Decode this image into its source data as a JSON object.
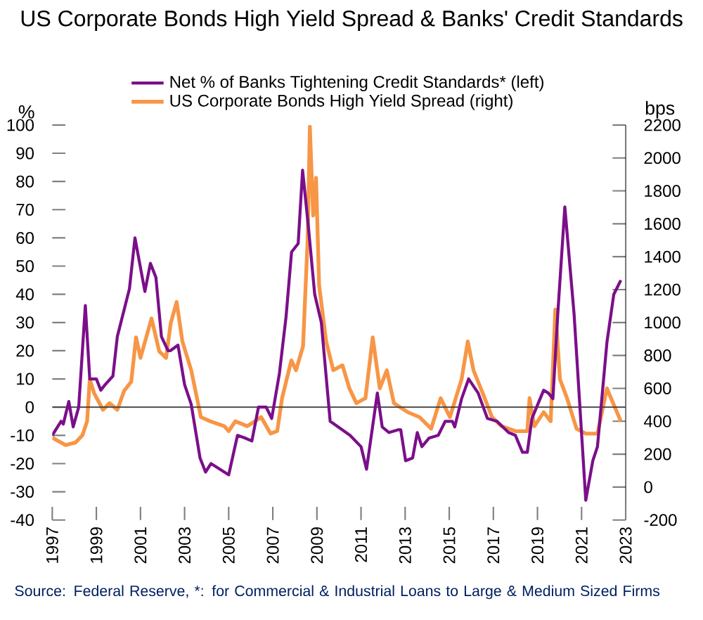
{
  "chart_data": {
    "type": "line",
    "title": "US Corporate Bonds High Yield Spread & Banks' Credit Standards",
    "ylabel": "%",
    "y2label": "bps",
    "xlim": [
      1997,
      2023
    ],
    "xticks": [
      1997,
      1999,
      2001,
      2003,
      2005,
      2007,
      2009,
      2011,
      2013,
      2015,
      2017,
      2019,
      2021,
      2023
    ],
    "ylim": [
      -40,
      100
    ],
    "yticks": [
      -40,
      -30,
      -20,
      -10,
      0,
      10,
      20,
      30,
      40,
      50,
      60,
      70,
      80,
      90,
      100
    ],
    "y2lim": [
      -200,
      2200
    ],
    "y2ticks": [
      -200,
      0,
      200,
      400,
      600,
      800,
      1000,
      1200,
      1400,
      1600,
      1800,
      2000,
      2200
    ],
    "legend": "top",
    "grid": false,
    "ref_lines": [
      {
        "axis": "y",
        "value": 0,
        "color": "#404040"
      }
    ],
    "series": [
      {
        "name": "Net % of Banks Tightening Credit Standards* (left)",
        "color": "#7b0f8a",
        "x": [
          1997.0,
          1997.4,
          1997.5,
          1997.75,
          1997.95,
          1998.2,
          1998.5,
          1998.7,
          1999.0,
          1999.2,
          1999.4,
          1999.75,
          1999.95,
          2000.5,
          2000.75,
          2001.2,
          2001.45,
          2001.7,
          2001.95,
          2002.25,
          2002.35,
          2002.7,
          2003.0,
          2003.3,
          2003.7,
          2003.95,
          2004.2,
          2004.8,
          2005.0,
          2005.4,
          2005.75,
          2006.05,
          2006.35,
          2006.7,
          2006.95,
          2007.3,
          2007.6,
          2007.85,
          2008.15,
          2008.35,
          2008.6,
          2008.9,
          2009.2,
          2009.6,
          2010.5,
          2011.0,
          2011.25,
          2011.74,
          2011.96,
          2012.27,
          2012.7,
          2012.8,
          2013.02,
          2013.34,
          2013.55,
          2013.76,
          2014.08,
          2014.5,
          2014.82,
          2015.14,
          2015.25,
          2015.56,
          2015.88,
          2016.31,
          2016.73,
          2017.16,
          2017.69,
          2018.0,
          2018.32,
          2018.54,
          2018.75,
          2019.28,
          2019.49,
          2019.7,
          2019.92,
          2020.24,
          2020.66,
          2021.19,
          2021.51,
          2021.72,
          2022.15,
          2022.46,
          2022.78
        ],
        "values": [
          -10,
          -5,
          -6,
          2,
          -7,
          0,
          36,
          10,
          10,
          6,
          8,
          11,
          25,
          42,
          60,
          41,
          51,
          46,
          25,
          20,
          20,
          22,
          8,
          1,
          -18,
          -23,
          -20,
          -23,
          -24,
          -10,
          -11,
          -12,
          0,
          0,
          -4,
          12,
          32,
          55,
          58,
          84,
          65,
          40,
          30,
          -5,
          -10,
          -14,
          -22,
          5,
          -7,
          -9,
          -8,
          -8,
          -19,
          -18,
          -9,
          -14,
          -11,
          -10,
          -5,
          -5,
          -7,
          3,
          10,
          5,
          -4,
          -5,
          -9,
          -10,
          -16,
          -16,
          -4,
          6,
          5,
          3,
          33,
          71,
          33,
          -33,
          -19,
          -14,
          23,
          40,
          45
        ]
      },
      {
        "name": "US Corporate Bonds High Yield Spread (right)",
        "color": "#f79646",
        "axis": "y2",
        "x": [
          1997.0,
          1997.6,
          1998.05,
          1998.37,
          1998.58,
          1998.7,
          1998.9,
          1999.3,
          1999.6,
          1999.95,
          2000.26,
          2000.58,
          2000.8,
          2001.0,
          2001.5,
          2001.85,
          2002.16,
          2002.37,
          2002.64,
          2002.9,
          2003.3,
          2003.74,
          2004.16,
          2004.8,
          2005.0,
          2005.3,
          2005.84,
          2006.47,
          2006.9,
          2007.2,
          2007.42,
          2007.84,
          2008.05,
          2008.37,
          2008.58,
          2008.68,
          2008.83,
          2008.96,
          2009.1,
          2009.42,
          2009.74,
          2010.16,
          2010.47,
          2010.79,
          2011.2,
          2011.53,
          2011.85,
          2012.17,
          2012.49,
          2013.12,
          2013.65,
          2014.18,
          2014.61,
          2015.03,
          2015.56,
          2015.84,
          2016.1,
          2016.52,
          2016.94,
          2017.37,
          2018.0,
          2018.54,
          2018.64,
          2018.86,
          2019.28,
          2019.6,
          2019.81,
          2020.02,
          2020.34,
          2020.77,
          2021.19,
          2021.72,
          2022.15,
          2022.46,
          2022.78
        ],
        "values": [
          300,
          255,
          270,
          315,
          400,
          655,
          570,
          470,
          510,
          470,
          585,
          640,
          910,
          785,
          1025,
          825,
          785,
          995,
          1125,
          885,
          710,
          425,
          400,
          370,
          340,
          400,
          370,
          425,
          325,
          340,
          540,
          770,
          710,
          855,
          1510,
          2190,
          1650,
          1880,
          1225,
          885,
          710,
          740,
          600,
          510,
          540,
          910,
          600,
          710,
          510,
          455,
          425,
          355,
          540,
          425,
          655,
          885,
          710,
          570,
          425,
          370,
          340,
          340,
          540,
          370,
          455,
          400,
          1080,
          655,
          540,
          355,
          325,
          325,
          600,
          500,
          400
        ]
      }
    ],
    "annotations": [
      "Source: Federal Reserve, *: for Commercial & Industrial Loans to Large & Medium Sized Firms"
    ]
  }
}
